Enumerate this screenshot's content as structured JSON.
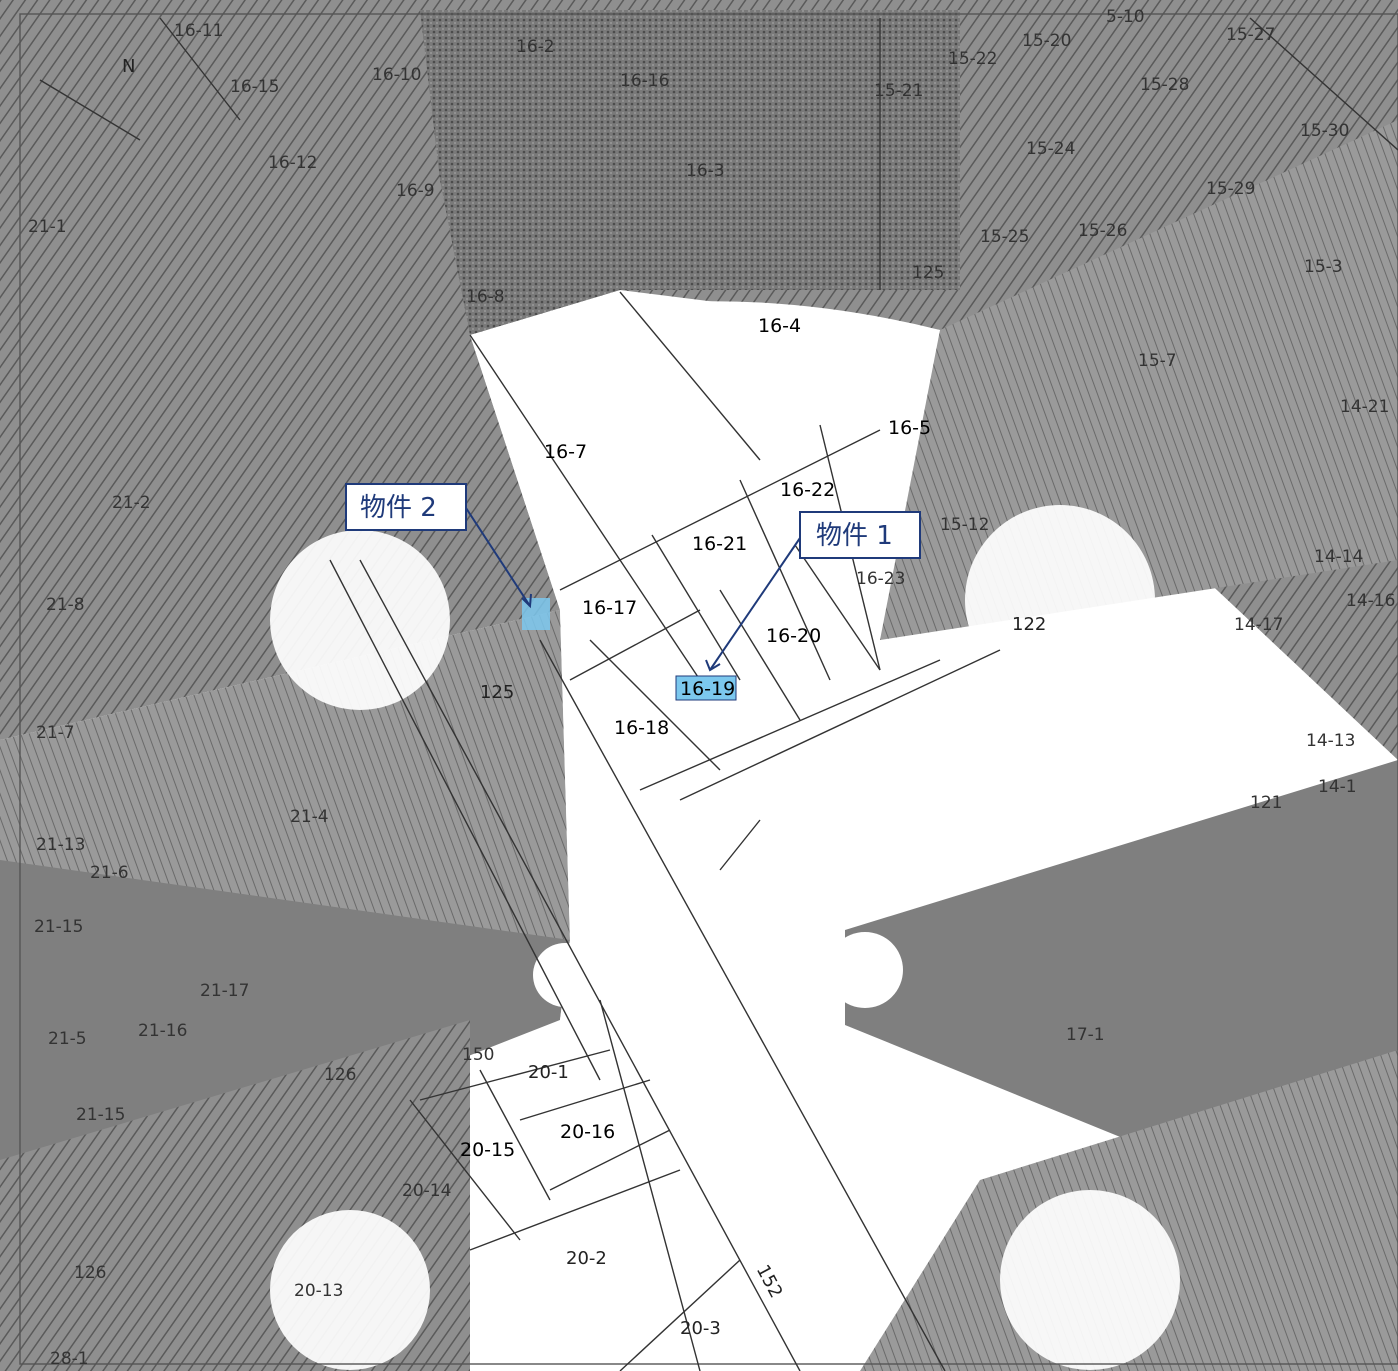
{
  "map": {
    "north_marker": "N",
    "colors": {
      "shade_dark": "#6a6a6a",
      "shade_mid": "#8a8a8a",
      "shade_light": "#a9a9a9",
      "background": "#ffffff",
      "line": "#333333",
      "callout_border": "#1f3a7a",
      "highlight": "#7cc8ee"
    },
    "parcels": [
      "16-11",
      "16-2",
      "16-10",
      "16-15",
      "16-16",
      "16-3",
      "16-12",
      "16-9",
      "16-8",
      "16-4",
      "16-5",
      "16-7",
      "16-22",
      "16-21",
      "16-17",
      "16-20",
      "16-23",
      "16-18",
      "16-19",
      "15-20",
      "15-27",
      "15-28",
      "15-21",
      "15-22",
      "15-24",
      "15-25",
      "15-26",
      "15-29",
      "15-30",
      "15-3",
      "15-7",
      "15-12",
      "14-21",
      "14-14",
      "14-16",
      "14-17",
      "14-13",
      "14-1",
      "125",
      "125",
      "122",
      "121",
      "21-1",
      "21-2",
      "21-8",
      "21-7",
      "21-4",
      "21-13",
      "21-6",
      "21-15",
      "21-17",
      "21-5",
      "21-16",
      "21-15",
      "126",
      "126",
      "17-1",
      "20-1",
      "20-16",
      "20-15",
      "20-14",
      "20-13",
      "20-2",
      "20-3",
      "152",
      "150",
      "28-1",
      "5-10"
    ],
    "callouts": [
      {
        "label": "物件 1"
      },
      {
        "label": "物件 2"
      }
    ],
    "highlighted_parcel": "16-19"
  }
}
